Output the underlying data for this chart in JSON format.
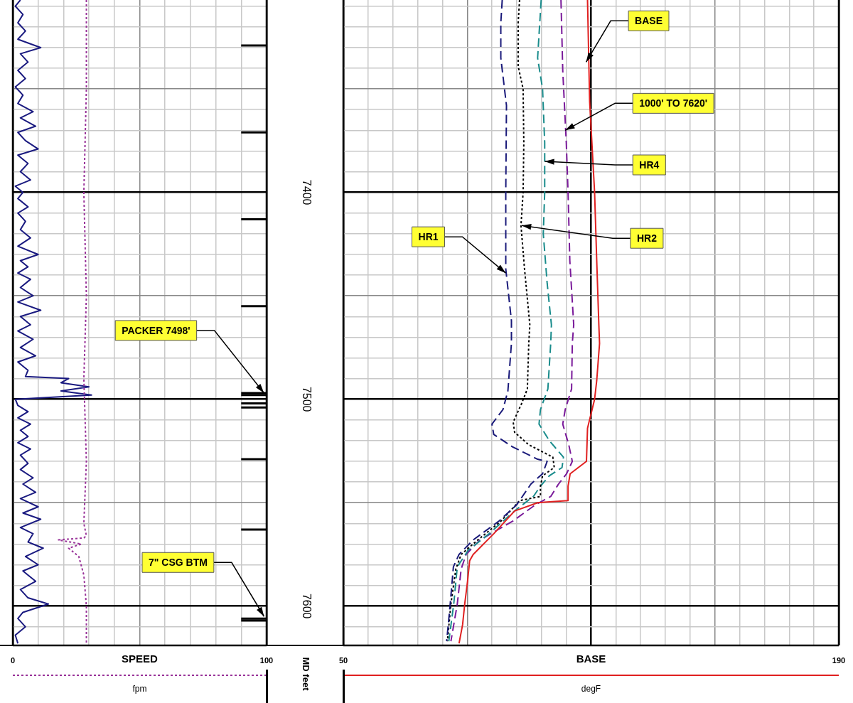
{
  "chart_data": [
    {
      "type": "line",
      "xlabel": "fpm",
      "ylabel": "MD feet",
      "xlim": [
        0,
        100
      ],
      "ylim": [
        7619,
        7307
      ],
      "xticks": [
        0,
        {
          "value": 10,
          "label": null
        },
        {
          "value": 20,
          "label": null
        },
        {
          "value": 30,
          "label": null
        },
        {
          "value": 40,
          "label": null
        },
        {
          "value": 50,
          "label": null
        },
        {
          "value": 60,
          "label": null
        },
        {
          "value": 70,
          "label": null
        },
        {
          "value": 80,
          "label": null
        },
        {
          "value": 90,
          "label": null
        },
        100
      ],
      "yticks": [
        {
          "value": 7310,
          "label": null
        },
        {
          "value": 7320,
          "label": null
        },
        {
          "value": 7330,
          "label": null
        },
        {
          "value": 7340,
          "label": null
        },
        {
          "value": 7350,
          "label": null
        },
        {
          "value": 7360,
          "label": null
        },
        {
          "value": 7370,
          "label": null
        },
        {
          "value": 7380,
          "label": null
        },
        {
          "value": 7390,
          "label": null
        },
        7400,
        {
          "value": 7410,
          "label": null
        },
        {
          "value": 7420,
          "label": null
        },
        {
          "value": 7430,
          "label": null
        },
        {
          "value": 7440,
          "label": null
        },
        {
          "value": 7450,
          "label": null
        },
        {
          "value": 7460,
          "label": null
        },
        {
          "value": 7470,
          "label": null
        },
        {
          "value": 7480,
          "label": null
        },
        {
          "value": 7490,
          "label": null
        },
        7500,
        {
          "value": 7510,
          "label": null
        },
        {
          "value": 7520,
          "label": null
        },
        {
          "value": 7530,
          "label": null
        },
        {
          "value": 7540,
          "label": null
        },
        {
          "value": 7550,
          "label": null
        },
        {
          "value": 7560,
          "label": null
        },
        {
          "value": 7570,
          "label": null
        },
        {
          "value": 7580,
          "label": null
        },
        {
          "value": 7590,
          "label": null
        },
        7600,
        {
          "value": 7610,
          "label": null
        }
      ],
      "grid": true,
      "legend": "bottom",
      "marker": "none",
      "series": [
        {
          "name": "SPEED",
          "color": "#993399",
          "line_style": "dotted",
          "x": [
            29,
            29,
            28,
            29,
            28,
            29,
            28,
            29,
            28,
            18,
            27,
            22,
            26,
            28,
            29,
            29
          ],
          "values": [
            7307,
            7350,
            7400,
            7450,
            7490,
            7530,
            7560,
            7566,
            7567,
            7568,
            7570,
            7572,
            7576,
            7585,
            7600,
            7619
          ]
        },
        {
          "color": "#1a1a80",
          "line_style": "solid",
          "x": [
            3,
            1,
            4,
            2,
            5,
            2,
            11,
            3,
            6,
            2,
            5,
            1,
            4,
            2,
            8,
            3,
            9,
            2,
            5,
            10,
            2,
            6,
            3,
            7,
            1,
            4,
            2,
            6,
            2,
            5,
            3,
            7,
            2,
            10,
            3,
            6,
            2,
            7,
            3,
            8,
            2,
            11,
            3,
            7,
            2,
            8,
            3,
            9,
            2,
            6,
            5,
            22,
            19,
            30,
            19,
            31,
            1,
            2,
            6,
            2,
            7,
            3,
            6,
            2,
            7,
            3,
            6,
            3,
            8,
            4,
            9,
            3,
            10,
            4,
            11,
            3,
            8,
            6,
            12,
            5,
            10,
            4,
            9,
            3,
            6,
            14,
            4,
            2,
            5,
            1,
            2
          ],
          "values": [
            7307,
            7310,
            7314,
            7318,
            7322,
            7326,
            7330,
            7333,
            7337,
            7341,
            7345,
            7349,
            7353,
            7357,
            7361,
            7364,
            7368,
            7371,
            7375,
            7379,
            7382,
            7386,
            7390,
            7394,
            7397,
            7400,
            7403,
            7407,
            7410,
            7414,
            7418,
            7422,
            7426,
            7430,
            7433,
            7436,
            7439,
            7442,
            7446,
            7450,
            7453,
            7457,
            7460,
            7464,
            7467,
            7471,
            7475,
            7479,
            7482,
            7486,
            7489,
            7490,
            7492,
            7494,
            7496,
            7498,
            7500,
            7503,
            7506,
            7509,
            7512,
            7515,
            7518,
            7521,
            7524,
            7527,
            7531,
            7534,
            7538,
            7541,
            7545,
            7548,
            7552,
            7555,
            7558,
            7562,
            7565,
            7569,
            7572,
            7576,
            7580,
            7583,
            7588,
            7592,
            7596,
            7599,
            7603,
            7606,
            7610,
            7614,
            7618
          ]
        },
        {
          "color": "#000000",
          "line_style": "solid",
          "x": [
            90,
            100
          ],
          "values": [
            7329,
            7329
          ]
        },
        {
          "color": "#000000",
          "line_style": "solid",
          "x": [
            90,
            100
          ],
          "values": [
            7371,
            7371
          ]
        },
        {
          "color": "#000000",
          "line_style": "solid",
          "x": [
            90,
            100
          ],
          "values": [
            7413,
            7413
          ]
        },
        {
          "color": "#000000",
          "line_style": "solid",
          "x": [
            90,
            100
          ],
          "values": [
            7455,
            7455
          ]
        },
        {
          "color": "#000000",
          "line_style": "solid",
          "x": [
            90,
            100
          ],
          "values": [
            7497,
            7497
          ]
        },
        {
          "color": "#000000",
          "line_style": "solid",
          "x": [
            90,
            100
          ],
          "values": [
            7498,
            7498
          ]
        },
        {
          "color": "#000000",
          "line_style": "solid",
          "x": [
            90,
            100
          ],
          "values": [
            7502,
            7502
          ]
        },
        {
          "color": "#000000",
          "line_style": "solid",
          "x": [
            90,
            100
          ],
          "values": [
            7504,
            7504
          ]
        },
        {
          "color": "#000000",
          "line_style": "solid",
          "x": [
            90,
            100
          ],
          "values": [
            7529,
            7529
          ]
        },
        {
          "color": "#000000",
          "line_style": "solid",
          "x": [
            90,
            100
          ],
          "values": [
            7563,
            7563
          ]
        },
        {
          "color": "#000000",
          "line_style": "solid",
          "x": [
            90,
            100
          ],
          "values": [
            7606,
            7606
          ]
        },
        {
          "color": "#000000",
          "line_style": "solid",
          "x": [
            90,
            100
          ],
          "values": [
            7607,
            7607
          ]
        }
      ],
      "annotations": [
        {
          "text": "PACKER 7498'",
          "x": 99,
          "y": 7497
        },
        {
          "text": "7\" CSG BTM",
          "x": 99,
          "y": 7605
        }
      ]
    },
    {
      "type": "line",
      "xlabel": "degF",
      "xlim": [
        50,
        190
      ],
      "ylim": [
        7619,
        7307
      ],
      "tick_labels": "x",
      "xticks": [
        50,
        {
          "value": 57,
          "label": null
        },
        {
          "value": 64,
          "label": null
        },
        {
          "value": 71,
          "label": null
        },
        {
          "value": 78,
          "label": null
        },
        {
          "value": 85,
          "label": null
        },
        {
          "value": 92,
          "label": null
        },
        {
          "value": 99,
          "label": null
        },
        {
          "value": 106,
          "label": null
        },
        {
          "value": 113,
          "label": null
        },
        {
          "value": 120,
          "label": null
        },
        {
          "value": 127,
          "label": null
        },
        {
          "value": 134,
          "label": null
        },
        {
          "value": 141,
          "label": null
        },
        {
          "value": 148,
          "label": null
        },
        {
          "value": 155,
          "label": null
        },
        {
          "value": 162,
          "label": null
        },
        {
          "value": 169,
          "label": null
        },
        {
          "value": 176,
          "label": null
        },
        {
          "value": 183,
          "label": null
        },
        190
      ],
      "yticks": [
        {
          "value": 7310,
          "label": null
        },
        {
          "value": 7320,
          "label": null
        },
        {
          "value": 7330,
          "label": null
        },
        {
          "value": 7340,
          "label": null
        },
        {
          "value": 7350,
          "label": null
        },
        {
          "value": 7360,
          "label": null
        },
        {
          "value": 7370,
          "label": null
        },
        {
          "value": 7380,
          "label": null
        },
        {
          "value": 7390,
          "label": null
        },
        {
          "value": 7400,
          "label": null
        },
        {
          "value": 7410,
          "label": null
        },
        {
          "value": 7420,
          "label": null
        },
        {
          "value": 7430,
          "label": null
        },
        {
          "value": 7440,
          "label": null
        },
        {
          "value": 7450,
          "label": null
        },
        {
          "value": 7460,
          "label": null
        },
        {
          "value": 7470,
          "label": null
        },
        {
          "value": 7480,
          "label": null
        },
        {
          "value": 7490,
          "label": null
        },
        {
          "value": 7500,
          "label": null
        },
        {
          "value": 7510,
          "label": null
        },
        {
          "value": 7520,
          "label": null
        },
        {
          "value": 7530,
          "label": null
        },
        {
          "value": 7540,
          "label": null
        },
        {
          "value": 7550,
          "label": null
        },
        {
          "value": 7560,
          "label": null
        },
        {
          "value": 7570,
          "label": null
        },
        {
          "value": 7580,
          "label": null
        },
        {
          "value": 7590,
          "label": null
        },
        {
          "value": 7600,
          "label": null
        },
        {
          "value": 7610,
          "label": null
        }
      ],
      "grid": true,
      "legend": "bottom",
      "marker": "none",
      "series": [
        {
          "name": "BASE",
          "color": "#e02020",
          "line_style": "solid",
          "x": [
            119,
            119.6,
            121,
            121.6,
            122.2,
            122.4,
            121.6,
            121,
            119,
            118.7,
            114.1,
            113.5,
            113.5,
            104.9,
            98.4,
            92.5,
            86.7,
            85.7,
            85.1,
            84.3,
            83.7,
            82.7
          ],
          "values": [
            7307,
            7356,
            7400,
            7433,
            7464,
            7473,
            7491,
            7500,
            7514,
            7530,
            7536,
            7542,
            7549,
            7550,
            7554,
            7565,
            7575,
            7578,
            7588,
            7599,
            7609,
            7618
          ]
        },
        {
          "color": "#1a1a7a",
          "line_style": "dashed",
          "x": [
            94.9,
            94.5,
            94.5,
            96.1,
            95.9,
            95.9,
            97.5,
            97.5,
            96.5,
            95.1,
            92,
            92.5,
            97.8,
            104.9,
            107.6,
            106.3,
            103,
            99,
            93.9,
            86.7,
            82.7,
            81.1,
            80.2,
            79.2
          ],
          "values": [
            7307,
            7318,
            7335,
            7358,
            7400,
            7437,
            7462,
            7473,
            7496,
            7505,
            7512,
            7517,
            7523,
            7529,
            7530,
            7536,
            7541,
            7551,
            7559,
            7568,
            7575,
            7581,
            7599,
            7617
          ]
        },
        {
          "color": "#000000",
          "line_style": "dotted",
          "x": [
            99.8,
            99.4,
            99.4,
            100.8,
            101,
            100.8,
            100.2,
            101.2,
            102.7,
            102.4,
            102,
            100.4,
            98,
            98.4,
            102.4,
            109.2,
            109.6,
            106.3,
            105.7,
            105.7,
            99.8,
            94.5,
            88,
            83.3,
            81.8,
            80.4,
            79.4
          ],
          "values": [
            7307,
            7318,
            7339,
            7350,
            7376,
            7400,
            7416,
            7437,
            7464,
            7473,
            7495,
            7502,
            7511,
            7516,
            7522,
            7528,
            7533,
            7537,
            7542,
            7547,
            7549,
            7559,
            7568,
            7575,
            7582,
            7599,
            7617
          ]
        },
        {
          "color": "#1a8c8c",
          "line_style": "dashed",
          "x": [
            105.9,
            104.9,
            106.3,
            106.9,
            106.9,
            106.5,
            107.6,
            108.8,
            108.6,
            107.8,
            105.7,
            105.3,
            108.2,
            112.2,
            111.8,
            108.2,
            105.7,
            103.7,
            98.4,
            91.2,
            85.3,
            82.2,
            81.2,
            79.8
          ],
          "values": [
            7307,
            7335,
            7350,
            7376,
            7400,
            7420,
            7444,
            7464,
            7473,
            7495,
            7505,
            7512,
            7520,
            7528,
            7533,
            7537,
            7542,
            7547,
            7554,
            7565,
            7573,
            7581,
            7599,
            7617
          ]
        },
        {
          "color": "#7a1a9a",
          "line_style": "dashed",
          "x": [
            111.5,
            112,
            113,
            113.5,
            114,
            115.1,
            114.7,
            114.5,
            112.7,
            112,
            113.7,
            114.7,
            113.1,
            110.8,
            108.6,
            104.3,
            97.8,
            88.6,
            84.7,
            83.3,
            82.2,
            80.4
          ],
          "values": [
            7307,
            7341,
            7376,
            7400,
            7433,
            7464,
            7473,
            7495,
            7505,
            7512,
            7522,
            7530,
            7536,
            7541,
            7547,
            7551,
            7559,
            7568,
            7575,
            7582,
            7599,
            7617
          ]
        }
      ],
      "annotations": [
        {
          "text": "BASE",
          "x": 118.6,
          "y": 7337
        },
        {
          "text": "1000' TO 7620'",
          "x": 112.7,
          "y": 7370
        },
        {
          "text": "HR4",
          "x": 106.9,
          "y": 7385
        },
        {
          "text": "HR2",
          "x": 100.4,
          "y": 7416
        },
        {
          "text": "HR1",
          "x": 95.9,
          "y": 7439
        }
      ]
    }
  ]
}
